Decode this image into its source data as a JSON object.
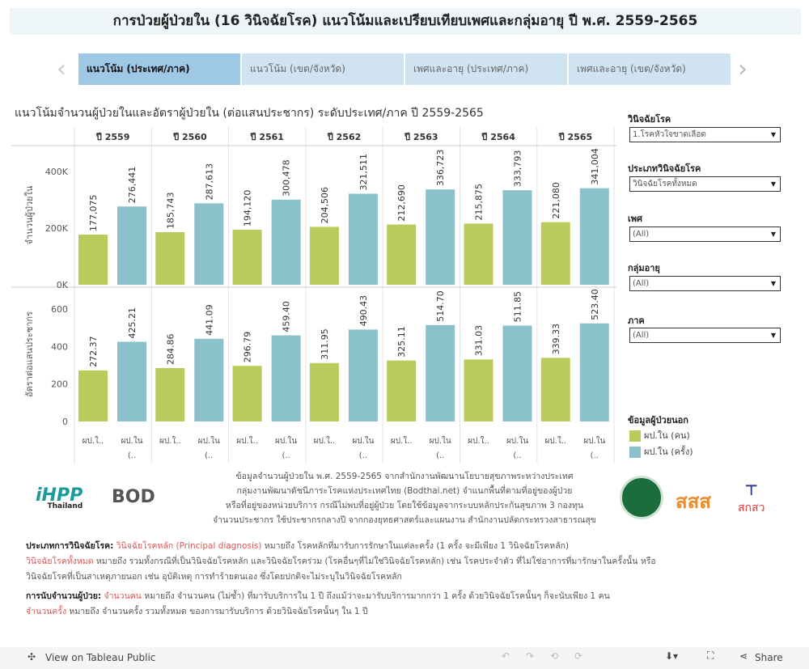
{
  "title": "การป่วยผู้ป่วยใน (16 วินิจฉัยโรค) แนวโน้มและเปรียบเทียบเพศและกลุ่มอายุ ปี พ.ศ. 2559-2565",
  "tabs": [
    {
      "label": "แนวโน้ม (ประเทศ/ภาค)",
      "active": true
    },
    {
      "label": "แนวโน้ม (เขต/จังหวัด)"
    },
    {
      "label": "เพศและอายุ (ประเทศ/ภาค)"
    },
    {
      "label": "เพศและอายุ (เขต/จังหวัด)"
    }
  ],
  "subtitle": "แนวโน้มจำนวนผู้ป่วยในและอัตราผู้ป่วยใน (ต่อแสนประชากร) ระดับประเทศ/ภาค ปี 2559-2565",
  "filters": [
    {
      "label": "วินิจฉัยโรค",
      "value": "1.โรคหัวใจขาดเลือด"
    },
    {
      "label": "ประเภทวินิจฉัยโรค",
      "value": "วินิจฉัยโรคทั้งหมด"
    },
    {
      "label": "เพศ",
      "value": "(All)"
    },
    {
      "label": "กลุ่มอายุ",
      "value": "(All)"
    },
    {
      "label": "ภาค",
      "value": "(All)"
    }
  ],
  "legend": {
    "title": "ข้อมูลผู้ป่วยนอก",
    "items": [
      {
        "label": "ผป.ใน (คน)",
        "color": "#b9cb5b"
      },
      {
        "label": "ผป.ใน (ครั้ง)",
        "color": "#8bc1cb"
      }
    ]
  },
  "chart_data": {
    "type": "bar",
    "categories": [
      "ปี 2559",
      "ปี 2560",
      "ปี 2561",
      "ปี 2562",
      "ปี 2563",
      "ปี 2564",
      "ปี 2565"
    ],
    "x_tick_labels": [
      "ผป.ใ..",
      "ผป.ใน (.."
    ],
    "panels": [
      {
        "ylabel": "จำนวนผู้ป่วยใน",
        "yticks": [
          "0K",
          "200K",
          "400K"
        ],
        "ytick_values": [
          0,
          200000,
          400000
        ],
        "series": [
          {
            "name": "ผป.ใน (คน)",
            "values": [
              177075,
              185743,
              194120,
              204506,
              212690,
              215875,
              221080
            ],
            "labels": [
              "177,075",
              "185,743",
              "194,120",
              "204,506",
              "212,690",
              "215,875",
              "221,080"
            ]
          },
          {
            "name": "ผป.ใน (ครั้ง)",
            "values": [
              276441,
              287613,
              300478,
              321511,
              336723,
              333793,
              341004
            ],
            "labels": [
              "276,441",
              "287,613",
              "300,478",
              "321,511",
              "336,723",
              "333,793",
              "341,004"
            ]
          }
        ]
      },
      {
        "ylabel": "อัตราต่อแสนประชากร",
        "yticks": [
          "0",
          "200",
          "400",
          "600"
        ],
        "ytick_values": [
          0,
          200,
          400,
          600
        ],
        "series": [
          {
            "name": "ผป.ใน (คน)",
            "values": [
              272.37,
              284.86,
              296.79,
              311.95,
              325.11,
              331.03,
              339.33
            ],
            "labels": [
              "272.37",
              "284.86",
              "296.79",
              "311.95",
              "325.11",
              "331.03",
              "339.33"
            ]
          },
          {
            "name": "ผป.ใน (ครั้ง)",
            "values": [
              425.21,
              441.09,
              459.4,
              490.43,
              514.7,
              511.85,
              523.4
            ],
            "labels": [
              "425.21",
              "441.09",
              "459.40",
              "490.43",
              "514.70",
              "511.85",
              "523.40"
            ]
          }
        ]
      }
    ]
  },
  "note": [
    "ข้อมูลจำนวนผู้ป่วยใน พ.ศ. 2559-2565 จากสำนักงานพัฒนานโยบายสุขภาพระหว่างประเทศ",
    "กลุ่มงานพัฒนาดัชนีภาระโรคแห่งประเทศไทย (Bodthai.net) จำแนกพื้นที่ตามที่อยู่ของผู้ป่วย",
    "หรือที่อยู่ของหน่วยบริการ กรณีไม่พบที่อยู่ผู้ป่วย โดยใช้ข้อมูลจากระบบหลักประกันสุขภาพ 3 กองทุน",
    "จำนวนประชากร ใช้ประชากรกลางปี จากกองยุทธศาสตร์และแผนงาน สำนักงานปลัดกระทรวงสาธารณสุข"
  ],
  "logos": {
    "ihpp": "IHPP Thailand",
    "bod": "BOD",
    "sss": "สสส",
    "sksw": "สกสว"
  },
  "defs": {
    "l1_b": "ประเภทการวินิจฉัยโรค:",
    "l1_r": "วินิจฉัยโรคหลัก (Principal diagnosis)",
    "l1_t": " หมายถึง โรคหลักที่มารับการรักษาในแต่ละครั้ง (1 ครั้ง จะมีเพียง 1 วินิจฉัยโรคหลัก)",
    "l2_r": "วินิจฉัยโรคทั้งหมด",
    "l2_t": " หมายถึง รวมทั้งกรณีที่เป็นวินิจฉัยโรคหลัก และวินิจฉัยโรคร่วม (โรคอื่นๆที่ไม่ใช่วินิจฉัยโรคหลัก) เช่น โรคประจำตัว ที่ไม่ใช่อาการที่มารักษาในครั้งนั้น หรือ",
    "l3_t": "วินิจฉัยโรคที่เป็นสาเหตุภายนอก เช่น อุบัติเหตุ การทำร้ายตนเอง ซึ่งโดยปกติจะไม่ระบุในวินิจฉัยโรคหลัก",
    "l4_b": "การนับจำนวนผู้ป่วย:",
    "l4_r": "จำนวนคน",
    "l4_t": " หมายถึง จำนวนคน (ไม่ซ้ำ) ที่มารับบริการใน 1 ปี ถึงแม้ว่าจะมารับบริการมากกว่า 1 ครั้ง ด้วยวินิจฉัยโรคนั้นๆ ก็จะนับเพียง 1 คน",
    "l5_r": "จำนวนครั้ง",
    "l5_t": " หมายถึง จำนวนครั้ง รวมทั้งหมด ของการมารับบริการ ด้วยวินิจฉัยโรคนั้นๆ ใน 1 ปี"
  },
  "footer": {
    "view": "View on Tableau Public",
    "share": "Share"
  }
}
